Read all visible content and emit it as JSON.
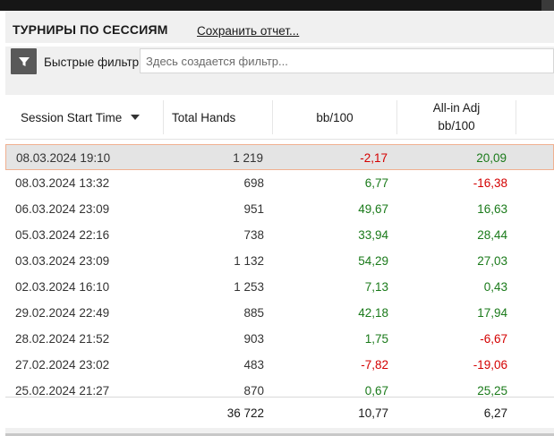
{
  "panel": {
    "title": "ТУРНИРЫ ПО СЕССИЯМ",
    "save_report_label": "Сохранить отчет..."
  },
  "filter": {
    "icon": "funnel-icon",
    "label": "Быстрые фильтры",
    "placeholder": "Здесь создается фильтр..."
  },
  "table": {
    "columns": {
      "session_start": "Session Start Time",
      "total_hands": "Total Hands",
      "bb100": "bb/100",
      "allin_adj_line1": "All-in Adj",
      "allin_adj_line2": "bb/100"
    },
    "sort_icon": "sort-descending-icon",
    "rows": [
      {
        "date": "08.03.2024 19:10",
        "hands": "1 219",
        "bb100": "-2,17",
        "adj": "20,09",
        "selected": true
      },
      {
        "date": "08.03.2024 13:32",
        "hands": "698",
        "bb100": "6,77",
        "adj": "-16,38"
      },
      {
        "date": "06.03.2024 23:09",
        "hands": "951",
        "bb100": "49,67",
        "adj": "16,63"
      },
      {
        "date": "05.03.2024 22:16",
        "hands": "738",
        "bb100": "33,94",
        "adj": "28,44"
      },
      {
        "date": "03.03.2024 23:09",
        "hands": "1 132",
        "bb100": "54,29",
        "adj": "27,03"
      },
      {
        "date": "02.03.2024 16:10",
        "hands": "1 253",
        "bb100": "7,13",
        "adj": "0,43"
      },
      {
        "date": "29.02.2024 22:49",
        "hands": "885",
        "bb100": "42,18",
        "adj": "17,94"
      },
      {
        "date": "28.02.2024 21:52",
        "hands": "903",
        "bb100": "1,75",
        "adj": "-6,67"
      },
      {
        "date": "27.02.2024 23:02",
        "hands": "483",
        "bb100": "-7,82",
        "adj": "-19,06"
      },
      {
        "date": "25.02.2024 21:27",
        "hands": "870",
        "bb100": "0,67",
        "adj": "25,25"
      }
    ],
    "totals": {
      "hands": "36 722",
      "bb100": "10,77",
      "adj": "6,27"
    }
  },
  "colors": {
    "positive": "#1a7a1a",
    "negative": "#d40000",
    "selected_row_bg": "#e4e4e4",
    "selected_row_border": "#f0b090",
    "filter_button_bg": "#595959"
  }
}
